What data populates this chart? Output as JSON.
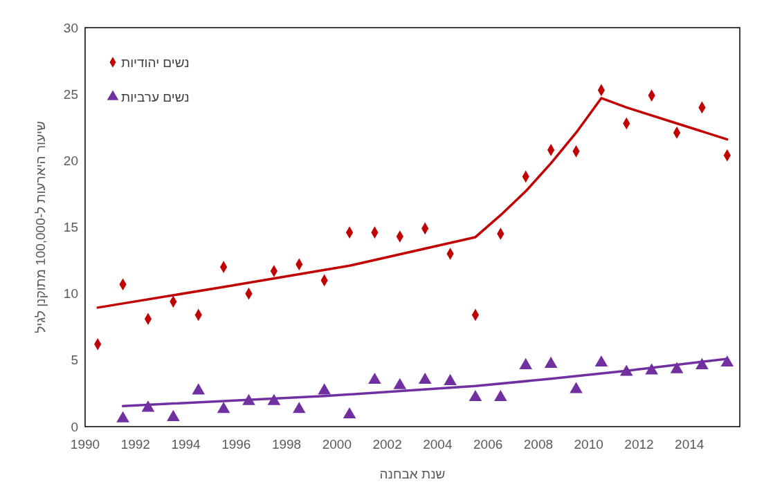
{
  "chart_data": {
    "type": "scatter",
    "xlabel": "שנת אבחנה",
    "ylabel": "שיעור היארעות ל-100,000 מתוקנן לגיל",
    "xlim": [
      1990,
      2016
    ],
    "xticks": [
      1990,
      1992,
      1994,
      1996,
      1998,
      2000,
      2002,
      2004,
      2006,
      2008,
      2010,
      2012,
      2014
    ],
    "ylim": [
      0,
      30
    ],
    "yticks": [
      0,
      5,
      10,
      15,
      20,
      25,
      30
    ],
    "grid": false,
    "legend": "top left",
    "series": [
      {
        "name": "נשים יהודיות",
        "color": "#c00000",
        "marker": "diamond",
        "x": [
          1990.5,
          1991.5,
          1992.5,
          1993.5,
          1994.5,
          1995.5,
          1996.5,
          1997.5,
          1998.5,
          1999.5,
          2000.5,
          2001.5,
          2002.5,
          2003.5,
          2004.5,
          2005.5,
          2006.5,
          2007.5,
          2008.5,
          2009.5,
          2010.5,
          2011.5,
          2012.5,
          2013.5,
          2014.5,
          2015.5
        ],
        "values": [
          6.2,
          10.7,
          8.1,
          9.4,
          8.4,
          12.0,
          10.0,
          11.7,
          12.2,
          11.0,
          14.6,
          14.6,
          14.3,
          14.9,
          13.0,
          8.4,
          14.5,
          18.8,
          20.8,
          20.7,
          25.3,
          22.8,
          24.9,
          22.1,
          24.0,
          20.4
        ]
      },
      {
        "name": "נשים ערביות",
        "color": "#7030a0",
        "marker": "triangle",
        "x": [
          1991.5,
          1992.5,
          1993.5,
          1994.5,
          1995.5,
          1996.5,
          1997.5,
          1998.5,
          1999.5,
          2000.5,
          2001.5,
          2002.5,
          2003.5,
          2004.5,
          2005.5,
          2006.5,
          2007.5,
          2008.5,
          2009.5,
          2010.5,
          2011.5,
          2012.5,
          2013.5,
          2014.5,
          2015.5
        ],
        "values": [
          0.6,
          1.4,
          0.7,
          2.7,
          1.3,
          1.9,
          1.9,
          1.3,
          2.7,
          0.9,
          3.5,
          3.1,
          3.5,
          3.4,
          2.2,
          2.2,
          4.6,
          4.7,
          2.8,
          4.8,
          4.1,
          4.2,
          4.3,
          4.6,
          4.8
        ]
      },
      {
        "type": "line",
        "color": "#c00000",
        "marker": "none",
        "x": [
          1990.5,
          1995.5,
          2000.5,
          2005.5,
          2006.5,
          2007.5,
          2008.5,
          2009.5,
          2010.5,
          2011.5,
          2013.5,
          2015.5
        ],
        "values": [
          8.95,
          10.5,
          12.1,
          14.25,
          15.9,
          17.7,
          19.8,
          22.1,
          24.7,
          24.0,
          22.8,
          21.6
        ]
      },
      {
        "type": "line",
        "color": "#7030a0",
        "marker": "none",
        "x": [
          1991.5,
          1999.5,
          2005.5,
          2008.5,
          2011.5,
          2015.5
        ],
        "values": [
          1.55,
          2.3,
          3.05,
          3.6,
          4.2,
          5.1
        ]
      }
    ]
  }
}
